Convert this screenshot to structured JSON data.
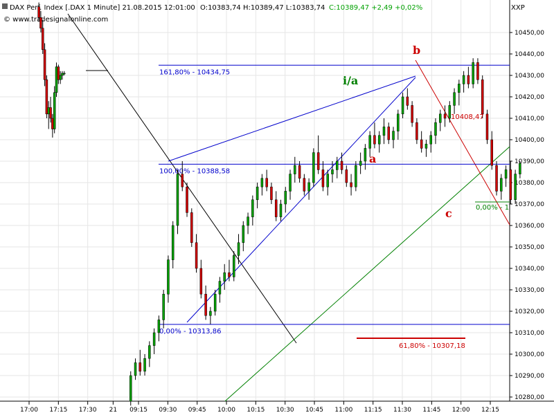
{
  "header": {
    "instrument": "DAX Perf. Index [.DAX  1 Minute] 21.08.2015 12:01:00",
    "ohlc": "O:10383,74 H:10389,47 L:10383,74",
    "close": "C:10389,47 +2,49 +0,02%",
    "source": "© www.tradesignalonline.com",
    "axis_code": "XXP"
  },
  "colors": {
    "up": "#00a000",
    "down": "#d00000",
    "fib_blue": "#0000cc",
    "fib_red": "#cc0000",
    "green_line": "#008000",
    "wave_green": "#008000",
    "wave_red": "#cc0000",
    "grid": "#e6e6e6"
  },
  "chart_data": {
    "type": "candlestick",
    "y_range": [
      10276,
      10464
    ],
    "y_ticks": [
      10280,
      10290,
      10300,
      10310,
      10320,
      10330,
      10340,
      10350,
      10360,
      10370,
      10380,
      10390,
      10400,
      10410,
      10420,
      10430,
      10440,
      10450
    ],
    "y_tick_labels": [
      "10280,00",
      "10290,00",
      "10300,00",
      "10310,00",
      "10320,00",
      "10330,00",
      "10340,00",
      "10350,00",
      "10360,00",
      "10370,00",
      "10380,00",
      "10390,00",
      "10400,00",
      "10410,00",
      "10420,00",
      "10430,00",
      "10440,00",
      "10450,00"
    ],
    "x_ticks": [
      "17:00",
      "17:15",
      "17:30",
      "21",
      "09:15",
      "09:30",
      "09:45",
      "10:00",
      "10:15",
      "10:30",
      "10:45",
      "11:00",
      "11:15",
      "11:30",
      "11:45",
      "12:00",
      "12:15"
    ],
    "x_tick_index": [
      0,
      15,
      30,
      43,
      56,
      71,
      86,
      101,
      116,
      131,
      146,
      161,
      176,
      191,
      206,
      221,
      236
    ],
    "candles_prev_day": [
      [
        10462,
        10464,
        10455,
        10457
      ],
      [
        10457,
        10460,
        10450,
        10452
      ],
      [
        10452,
        10456,
        10440,
        10442
      ],
      [
        10442,
        10445,
        10425,
        10428
      ],
      [
        10428,
        10430,
        10410,
        10412
      ],
      [
        10412,
        10418,
        10405,
        10415
      ],
      [
        10415,
        10420,
        10408,
        10410
      ],
      [
        10410,
        10412,
        10401,
        10405
      ],
      [
        10405,
        10425,
        10403,
        10422
      ],
      [
        10422,
        10436,
        10420,
        10434
      ],
      [
        10434,
        10435,
        10426,
        10428
      ],
      [
        10428,
        10432,
        10426,
        10430
      ],
      [
        10430,
        10432,
        10428,
        10431
      ],
      [
        10431,
        10432,
        10430,
        10431
      ]
    ],
    "flat_close": 10432,
    "candles_day": [
      [
        10278,
        10292,
        10276,
        10290
      ],
      [
        10290,
        10298,
        10288,
        10296
      ],
      [
        10296,
        10302,
        10290,
        10292
      ],
      [
        10292,
        10300,
        10290,
        10298
      ],
      [
        10298,
        10306,
        10294,
        10304
      ],
      [
        10304,
        10312,
        10300,
        10310
      ],
      [
        10310,
        10318,
        10306,
        10316
      ],
      [
        10316,
        10330,
        10312,
        10328
      ],
      [
        10328,
        10346,
        10324,
        10344
      ],
      [
        10344,
        10362,
        10340,
        10360
      ],
      [
        10360,
        10386,
        10356,
        10384
      ],
      [
        10384,
        10390,
        10376,
        10378
      ],
      [
        10378,
        10380,
        10364,
        10366
      ],
      [
        10366,
        10368,
        10350,
        10352
      ],
      [
        10352,
        10356,
        10338,
        10340
      ],
      [
        10340,
        10344,
        10326,
        10328
      ],
      [
        10328,
        10332,
        10316,
        10318
      ],
      [
        10318,
        10322,
        10314,
        10320
      ],
      [
        10320,
        10330,
        10318,
        10328
      ],
      [
        10328,
        10336,
        10324,
        10334
      ],
      [
        10334,
        10342,
        10330,
        10338
      ],
      [
        10338,
        10344,
        10334,
        10336
      ],
      [
        10336,
        10348,
        10334,
        10346
      ],
      [
        10346,
        10356,
        10342,
        10352
      ],
      [
        10352,
        10362,
        10348,
        10360
      ],
      [
        10360,
        10366,
        10356,
        10364
      ],
      [
        10364,
        10374,
        10360,
        10372
      ],
      [
        10372,
        10380,
        10368,
        10378
      ],
      [
        10378,
        10384,
        10374,
        10382
      ],
      [
        10382,
        10386,
        10376,
        10378
      ],
      [
        10378,
        10380,
        10370,
        10372
      ],
      [
        10372,
        10376,
        10362,
        10364
      ],
      [
        10364,
        10372,
        10362,
        10370
      ],
      [
        10370,
        10378,
        10366,
        10376
      ],
      [
        10376,
        10386,
        10372,
        10384
      ],
      [
        10384,
        10392,
        10380,
        10388
      ],
      [
        10388,
        10390,
        10380,
        10382
      ],
      [
        10382,
        10384,
        10374,
        10376
      ],
      [
        10376,
        10382,
        10372,
        10380
      ],
      [
        10380,
        10396,
        10378,
        10394
      ],
      [
        10394,
        10402,
        10384,
        10386
      ],
      [
        10386,
        10390,
        10376,
        10378
      ],
      [
        10378,
        10386,
        10374,
        10384
      ],
      [
        10384,
        10390,
        10380,
        10386
      ],
      [
        10386,
        10392,
        10382,
        10390
      ],
      [
        10390,
        10394,
        10384,
        10386
      ],
      [
        10386,
        10388,
        10378,
        10380
      ],
      [
        10380,
        10384,
        10374,
        10378
      ],
      [
        10378,
        10390,
        10376,
        10388
      ],
      [
        10388,
        10394,
        10384,
        10390
      ],
      [
        10390,
        10398,
        10386,
        10396
      ],
      [
        10396,
        10404,
        10392,
        10402
      ],
      [
        10402,
        10408,
        10396,
        10398
      ],
      [
        10398,
        10404,
        10394,
        10402
      ],
      [
        10402,
        10410,
        10398,
        10406
      ],
      [
        10406,
        10408,
        10398,
        10400
      ],
      [
        10400,
        10406,
        10396,
        10404
      ],
      [
        10404,
        10414,
        10400,
        10412
      ],
      [
        10412,
        10422,
        10410,
        10420
      ],
      [
        10420,
        10424,
        10414,
        10416
      ],
      [
        10416,
        10418,
        10406,
        10408
      ],
      [
        10408,
        10410,
        10398,
        10400
      ],
      [
        10400,
        10404,
        10394,
        10396
      ],
      [
        10396,
        10400,
        10392,
        10398
      ],
      [
        10398,
        10404,
        10394,
        10402
      ],
      [
        10402,
        10410,
        10398,
        10408
      ],
      [
        10408,
        10414,
        10404,
        10412
      ],
      [
        10412,
        10416,
        10406,
        10410
      ],
      [
        10410,
        10418,
        10408,
        10416
      ],
      [
        10416,
        10424,
        10412,
        10422
      ],
      [
        10422,
        10428,
        10416,
        10426
      ],
      [
        10426,
        10432,
        10422,
        10430
      ],
      [
        10430,
        10434,
        10424,
        10426
      ],
      [
        10426,
        10438,
        10424,
        10436
      ],
      [
        10436,
        10438,
        10426,
        10428
      ],
      [
        10428,
        10430,
        10410,
        10412
      ],
      [
        10412,
        10414,
        10398,
        10400
      ],
      [
        10400,
        10404,
        10386,
        10388
      ],
      [
        10388,
        10390,
        10374,
        10376
      ],
      [
        10376,
        10384,
        10372,
        10382
      ],
      [
        10382,
        10388,
        10378,
        10386
      ],
      [
        10386,
        10390,
        10370,
        10372
      ],
      [
        10372,
        10386,
        10370,
        10384
      ],
      [
        10384,
        10390,
        10382,
        10389
      ]
    ],
    "fib_levels": [
      {
        "label": "161,80% - 10434,75",
        "value": 10434.75
      },
      {
        "label": "100,00% - 10388,58",
        "value": 10388.58
      },
      {
        "label": "0,00% - 10313,86",
        "value": 10313.86
      }
    ],
    "red_fib": {
      "label": "61,80% - 10307,18",
      "value": 10307.18
    },
    "green_fib": {
      "label": "0,00% - 1",
      "value": 10370.5
    },
    "red_line_label": "10408,47",
    "waves": {
      "ia": "i/a",
      "a": "a",
      "b": "b",
      "c": "c"
    }
  }
}
